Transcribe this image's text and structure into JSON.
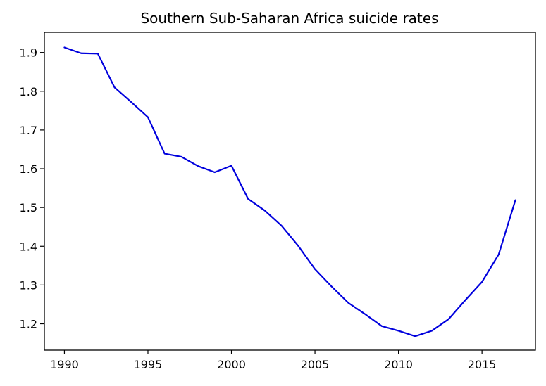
{
  "chart_data": {
    "type": "line",
    "title": "Southern Sub-Saharan Africa suicide rates",
    "xlabel": "",
    "ylabel": "",
    "xlim": [
      1988.8,
      2018.2
    ],
    "ylim": [
      1.132,
      1.952
    ],
    "xticks": [
      1990,
      1995,
      2000,
      2005,
      2010,
      2015
    ],
    "yticks": [
      1.2,
      1.3,
      1.4,
      1.5,
      1.6,
      1.7,
      1.8,
      1.9
    ],
    "grid": false,
    "legend": "none",
    "series": [
      {
        "color": "#0000dd",
        "x": [
          1990,
          1991,
          1992,
          1993,
          1994,
          1995,
          1996,
          1997,
          1998,
          1999,
          2000,
          2001,
          2002,
          2003,
          2004,
          2005,
          2006,
          2007,
          2008,
          2009,
          2010,
          2011,
          2012,
          2013,
          2014,
          2015,
          2016,
          2017
        ],
        "y": [
          1.913,
          1.898,
          1.897,
          1.81,
          1.772,
          1.733,
          1.639,
          1.631,
          1.607,
          1.591,
          1.608,
          1.522,
          1.492,
          1.453,
          1.401,
          1.341,
          1.296,
          1.254,
          1.225,
          1.194,
          1.182,
          1.168,
          1.182,
          1.212,
          1.261,
          1.308,
          1.379,
          1.519
        ]
      }
    ]
  }
}
